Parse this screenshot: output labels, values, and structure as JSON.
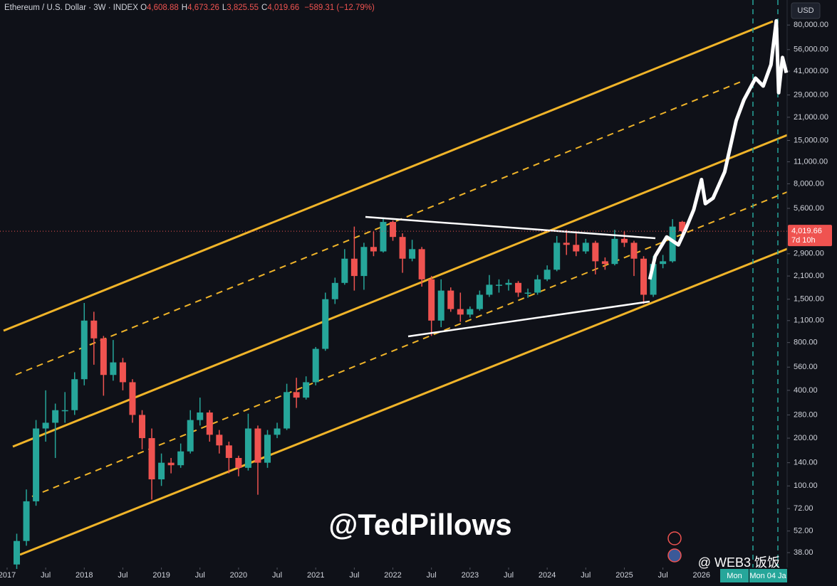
{
  "header": {
    "symbol": "Ethereum / U.S. Dollar · 3W · INDEX",
    "ohlc": [
      {
        "key": "O",
        "value": "4,608.88"
      },
      {
        "key": "H",
        "value": "4,673.26"
      },
      {
        "key": "L",
        "value": "3,825.55"
      },
      {
        "key": "C",
        "value": "4,019.66"
      }
    ],
    "change": "−589.31 (−12.79%)"
  },
  "currency": "USD",
  "watermark": "@TedPillows",
  "source": "@ WEB3 饭饭",
  "badges": [
    "Mon",
    "Mon 04 Ja"
  ],
  "chart_data": {
    "type": "candlestick",
    "log_scale": true,
    "grid": false,
    "up_color": "#26a69a",
    "down_color": "#ef5350",
    "xlim": [
      2016.908,
      2027.11
    ],
    "ylim": [
      30,
      115000
    ],
    "xticks": [
      2017,
      {
        "value": 2017.5,
        "label": "Jul"
      },
      2018,
      {
        "value": 2018.5,
        "label": "Jul"
      },
      2019,
      {
        "value": 2019.5,
        "label": "Jul"
      },
      2020,
      {
        "value": 2020.5,
        "label": "Jul"
      },
      2021,
      {
        "value": 2021.5,
        "label": "Jul"
      },
      2022,
      {
        "value": 2022.5,
        "label": "Jul"
      },
      2023,
      {
        "value": 2023.5,
        "label": "Jul"
      },
      2024,
      {
        "value": 2024.5,
        "label": "Jul"
      },
      2025,
      {
        "value": 2025.5,
        "label": "Jul"
      },
      2026
    ],
    "yticks": [
      {
        "value": 80000,
        "label": "80,000.00"
      },
      {
        "value": 56000,
        "label": "56,000.00"
      },
      {
        "value": 41000,
        "label": "41,000.00"
      },
      {
        "value": 29000,
        "label": "29,000.00"
      },
      {
        "value": 21000,
        "label": "21,000.00"
      },
      {
        "value": 15000,
        "label": "15,000.00"
      },
      {
        "value": 11000,
        "label": "11,000.00"
      },
      {
        "value": 8000,
        "label": "8,000.00"
      },
      {
        "value": 5600,
        "label": "5,600.00"
      },
      {
        "value": 2900,
        "label": "2,900.00"
      },
      {
        "value": 2100,
        "label": "2,100.00"
      },
      {
        "value": 1500,
        "label": "1,500.00"
      },
      {
        "value": 1100,
        "label": "1,100.00"
      },
      {
        "value": 800,
        "label": "800.00"
      },
      {
        "value": 560,
        "label": "560.00"
      },
      {
        "value": 400,
        "label": "400.00"
      },
      {
        "value": 280,
        "label": "280.00"
      },
      {
        "value": 200,
        "label": "200.00"
      },
      {
        "value": 140,
        "label": "140.00"
      },
      {
        "value": 100,
        "label": "100.00"
      },
      {
        "value": 72,
        "label": "72.00"
      },
      {
        "value": 52,
        "label": "52.00"
      },
      {
        "value": 38,
        "label": "38.00"
      }
    ],
    "candles": {
      "x": [
        2017.125,
        2017.25,
        2017.375,
        2017.5,
        2017.625,
        2017.75,
        2017.875,
        2018.0,
        2018.125,
        2018.25,
        2018.375,
        2018.5,
        2018.625,
        2018.75,
        2018.875,
        2019.0,
        2019.125,
        2019.25,
        2019.375,
        2019.5,
        2019.625,
        2019.75,
        2019.875,
        2020.0,
        2020.125,
        2020.25,
        2020.375,
        2020.5,
        2020.625,
        2020.75,
        2020.875,
        2021.0,
        2021.125,
        2021.25,
        2021.375,
        2021.5,
        2021.625,
        2021.75,
        2021.875,
        2022.0,
        2022.125,
        2022.25,
        2022.375,
        2022.5,
        2022.625,
        2022.75,
        2022.875,
        2023.0,
        2023.125,
        2023.25,
        2023.375,
        2023.5,
        2023.625,
        2023.75,
        2023.875,
        2024.0,
        2024.125,
        2024.25,
        2024.375,
        2024.5,
        2024.625,
        2024.75,
        2024.875,
        2025.0,
        2025.125,
        2025.25,
        2025.375,
        2025.5,
        2025.625,
        2025.75
      ],
      "open": [
        32,
        45,
        80,
        230,
        250,
        300,
        300,
        470,
        1100,
        850,
        500,
        600,
        450,
        280,
        200,
        110,
        140,
        135,
        165,
        260,
        290,
        210,
        180,
        150,
        130,
        230,
        140,
        210,
        230,
        390,
        360,
        450,
        730,
        1500,
        1900,
        2700,
        2100,
        3200,
        3000,
        4600,
        3700,
        2700,
        3100,
        2000,
        1100,
        1700,
        1300,
        1200,
        1300,
        1600,
        1850,
        1850,
        1900,
        1650,
        1650,
        2000,
        2300,
        3400,
        3300,
        3000,
        3400,
        2600,
        2500,
        3600,
        3400,
        2700,
        1600,
        2500,
        2600,
        4608.88
      ],
      "high": [
        50,
        95,
        260,
        400,
        330,
        390,
        520,
        1420,
        1250,
        880,
        830,
        640,
        470,
        300,
        230,
        160,
        150,
        185,
        300,
        360,
        300,
        225,
        190,
        155,
        285,
        240,
        225,
        250,
        440,
        480,
        490,
        750,
        1650,
        2050,
        3100,
        4300,
        3400,
        4000,
        4870,
        4700,
        3900,
        3550,
        3200,
        2100,
        2000,
        1780,
        1650,
        1350,
        1700,
        2130,
        2000,
        2000,
        1950,
        1750,
        2130,
        2450,
        3750,
        4100,
        3900,
        3600,
        3500,
        2750,
        4100,
        4000,
        3500,
        2800,
        2800,
        2850,
        4790,
        4673.26
      ],
      "low": [
        30,
        42,
        75,
        190,
        150,
        250,
        280,
        430,
        580,
        370,
        460,
        400,
        250,
        170,
        82,
        100,
        120,
        130,
        160,
        240,
        190,
        160,
        120,
        115,
        125,
        88,
        130,
        200,
        225,
        310,
        350,
        430,
        710,
        1400,
        1850,
        1700,
        1720,
        2800,
        2950,
        3500,
        2200,
        2600,
        1800,
        880,
        1000,
        1250,
        1080,
        1150,
        1270,
        1550,
        1650,
        1700,
        1550,
        1530,
        1600,
        1950,
        2250,
        2850,
        2800,
        2900,
        2150,
        2300,
        2450,
        3200,
        2100,
        1400,
        1550,
        2350,
        2550,
        3825.55
      ],
      "close": [
        45,
        80,
        230,
        250,
        300,
        300,
        470,
        1100,
        850,
        500,
        600,
        450,
        280,
        200,
        110,
        140,
        135,
        165,
        260,
        290,
        210,
        180,
        150,
        130,
        230,
        140,
        210,
        230,
        390,
        360,
        450,
        730,
        1500,
        1900,
        2700,
        2100,
        3200,
        3000,
        4600,
        3700,
        2700,
        3100,
        2000,
        1100,
        1700,
        1300,
        1200,
        1300,
        1600,
        1850,
        1850,
        1900,
        1650,
        1650,
        2000,
        2300,
        3400,
        3300,
        3000,
        3400,
        2600,
        2500,
        3600,
        3400,
        2700,
        1600,
        2500,
        2600,
        4300,
        4019.66
      ]
    },
    "projection": {
      "color": "#ffffff",
      "x": [
        2025.33,
        2025.4,
        2025.55,
        2025.7,
        2025.8,
        2025.9,
        2026.0,
        2026.05,
        2026.15,
        2026.3,
        2026.45,
        2026.55,
        2026.7,
        2026.8,
        2026.9,
        2026.97,
        2027.0,
        2027.05,
        2027.1
      ],
      "values": [
        2000,
        2800,
        3700,
        3300,
        4200,
        5500,
        8500,
        6000,
        6500,
        9500,
        20000,
        27000,
        37000,
        33000,
        45000,
        85000,
        30000,
        50000,
        40000
      ]
    },
    "last_price": {
      "value": 4019.66,
      "label": "4,019.66"
    },
    "countdown": "7d 10h"
  }
}
